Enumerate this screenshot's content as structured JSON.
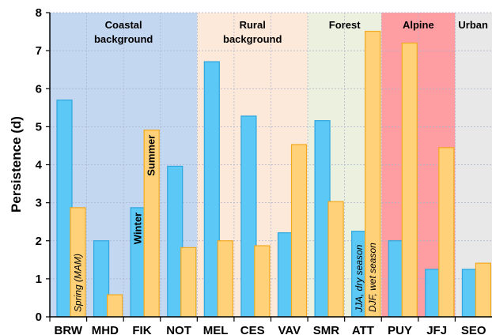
{
  "chart_data": {
    "type": "bar",
    "ylabel": "Persistence (d)",
    "xlabel": "",
    "title": "",
    "ylim": [
      0,
      8
    ],
    "yticks": [
      "0",
      "1",
      "2",
      "3",
      "4",
      "5",
      "6",
      "7",
      "8"
    ],
    "grid": true,
    "categories": [
      "BRW",
      "MHD",
      "FIK",
      "NOT",
      "MEL",
      "CES",
      "VAV",
      "SMR",
      "ATT",
      "PUY",
      "JFJ",
      "SEO"
    ],
    "series": [
      {
        "color": "#5bc8f5",
        "values": [
          5.7,
          2.0,
          2.87,
          3.96,
          6.71,
          5.28,
          2.21,
          5.16,
          2.25,
          2.0,
          1.25,
          1.25
        ]
      },
      {
        "color": "#ffd27a",
        "values": [
          2.87,
          0.58,
          4.91,
          1.82,
          2.0,
          1.87,
          4.53,
          3.03,
          7.51,
          7.2,
          4.45,
          1.41
        ]
      }
    ],
    "regions": [
      {
        "label_lines": [
          "Coastal",
          "background"
        ],
        "from": 0,
        "to": 3,
        "color": "#c4d7f0"
      },
      {
        "label_lines": [
          "Rural",
          "background"
        ],
        "from": 4,
        "to": 6,
        "color": "#fde9d9"
      },
      {
        "label_lines": [
          "Forest"
        ],
        "from": 7,
        "to": 8,
        "color": "#ebf1de"
      },
      {
        "label_lines": [
          "Alpine"
        ],
        "from": 9,
        "to": 10,
        "color": "#ff9ea2"
      },
      {
        "label_lines": [
          "Urban"
        ],
        "from": 11,
        "to": 11,
        "color": "#e8e8e8"
      }
    ],
    "annotations": [
      {
        "text": "Spring (MAM)",
        "category": 0,
        "series": 1,
        "style": "italic"
      },
      {
        "text": "Winter",
        "category": 2,
        "series": 0,
        "style": "bold"
      },
      {
        "text": "Summer",
        "category": 2,
        "series": 1,
        "style": "bold"
      },
      {
        "text": "JJA, dry season",
        "category": 8,
        "series": 0,
        "style": "italic"
      },
      {
        "text": "DJF, wet season",
        "category": 8,
        "series": 1,
        "style": "italic"
      }
    ]
  }
}
